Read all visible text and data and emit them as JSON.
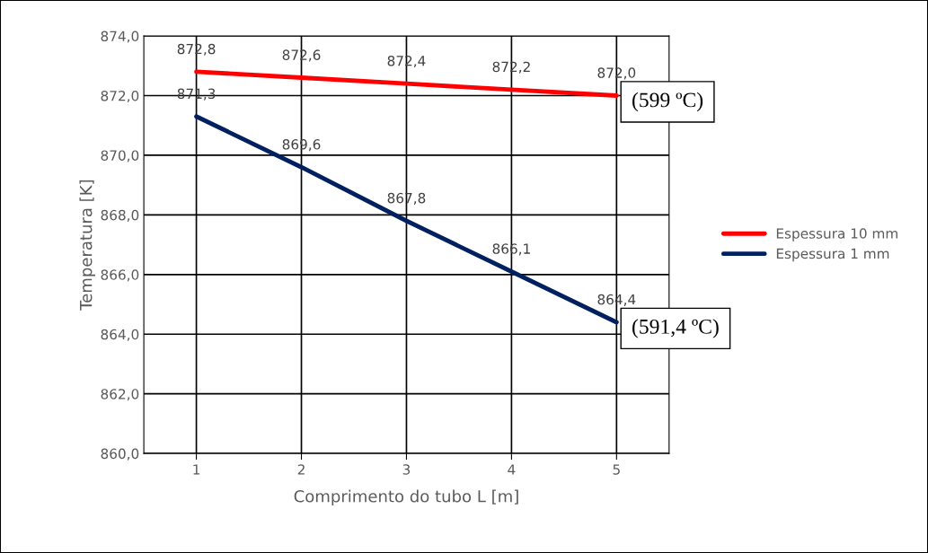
{
  "chart_data": {
    "type": "line",
    "xlabel": "Comprimento do tubo L [m]",
    "ylabel": "Temperatura [K]",
    "categories": [
      "1",
      "2",
      "3",
      "4",
      "5"
    ],
    "series": [
      {
        "name": "Espessura 10 mm",
        "color": "#ff0000",
        "values": [
          872.8,
          872.6,
          872.4,
          872.2,
          872.0
        ],
        "value_labels": [
          "872,8",
          "872,6",
          "872,4",
          "872,2",
          "872,0"
        ]
      },
      {
        "name": "Espessura 1 mm",
        "color": "#002060",
        "values": [
          871.3,
          869.6,
          867.8,
          866.1,
          864.4
        ],
        "value_labels": [
          "871,3",
          "869,6",
          "867,8",
          "866,1",
          "864,4"
        ]
      }
    ],
    "ylim": [
      860,
      874
    ],
    "yticks": [
      {
        "value": 860,
        "label": "860,0"
      },
      {
        "value": 862,
        "label": "862,0"
      },
      {
        "value": 864,
        "label": "864,0"
      },
      {
        "value": 866,
        "label": "866,0"
      },
      {
        "value": 868,
        "label": "868,0"
      },
      {
        "value": 870,
        "label": "870,0"
      },
      {
        "value": 872,
        "label": "872,0"
      },
      {
        "value": 874,
        "label": "874,0"
      }
    ],
    "annotations": [
      {
        "text": "(599 ºC)",
        "x": "5",
        "y": 872.0
      },
      {
        "text": "(591,4 ºC)",
        "x": "5",
        "y": 864.4
      }
    ],
    "grid": true,
    "legend": "right",
    "marker": "none",
    "line_style": "solid"
  }
}
